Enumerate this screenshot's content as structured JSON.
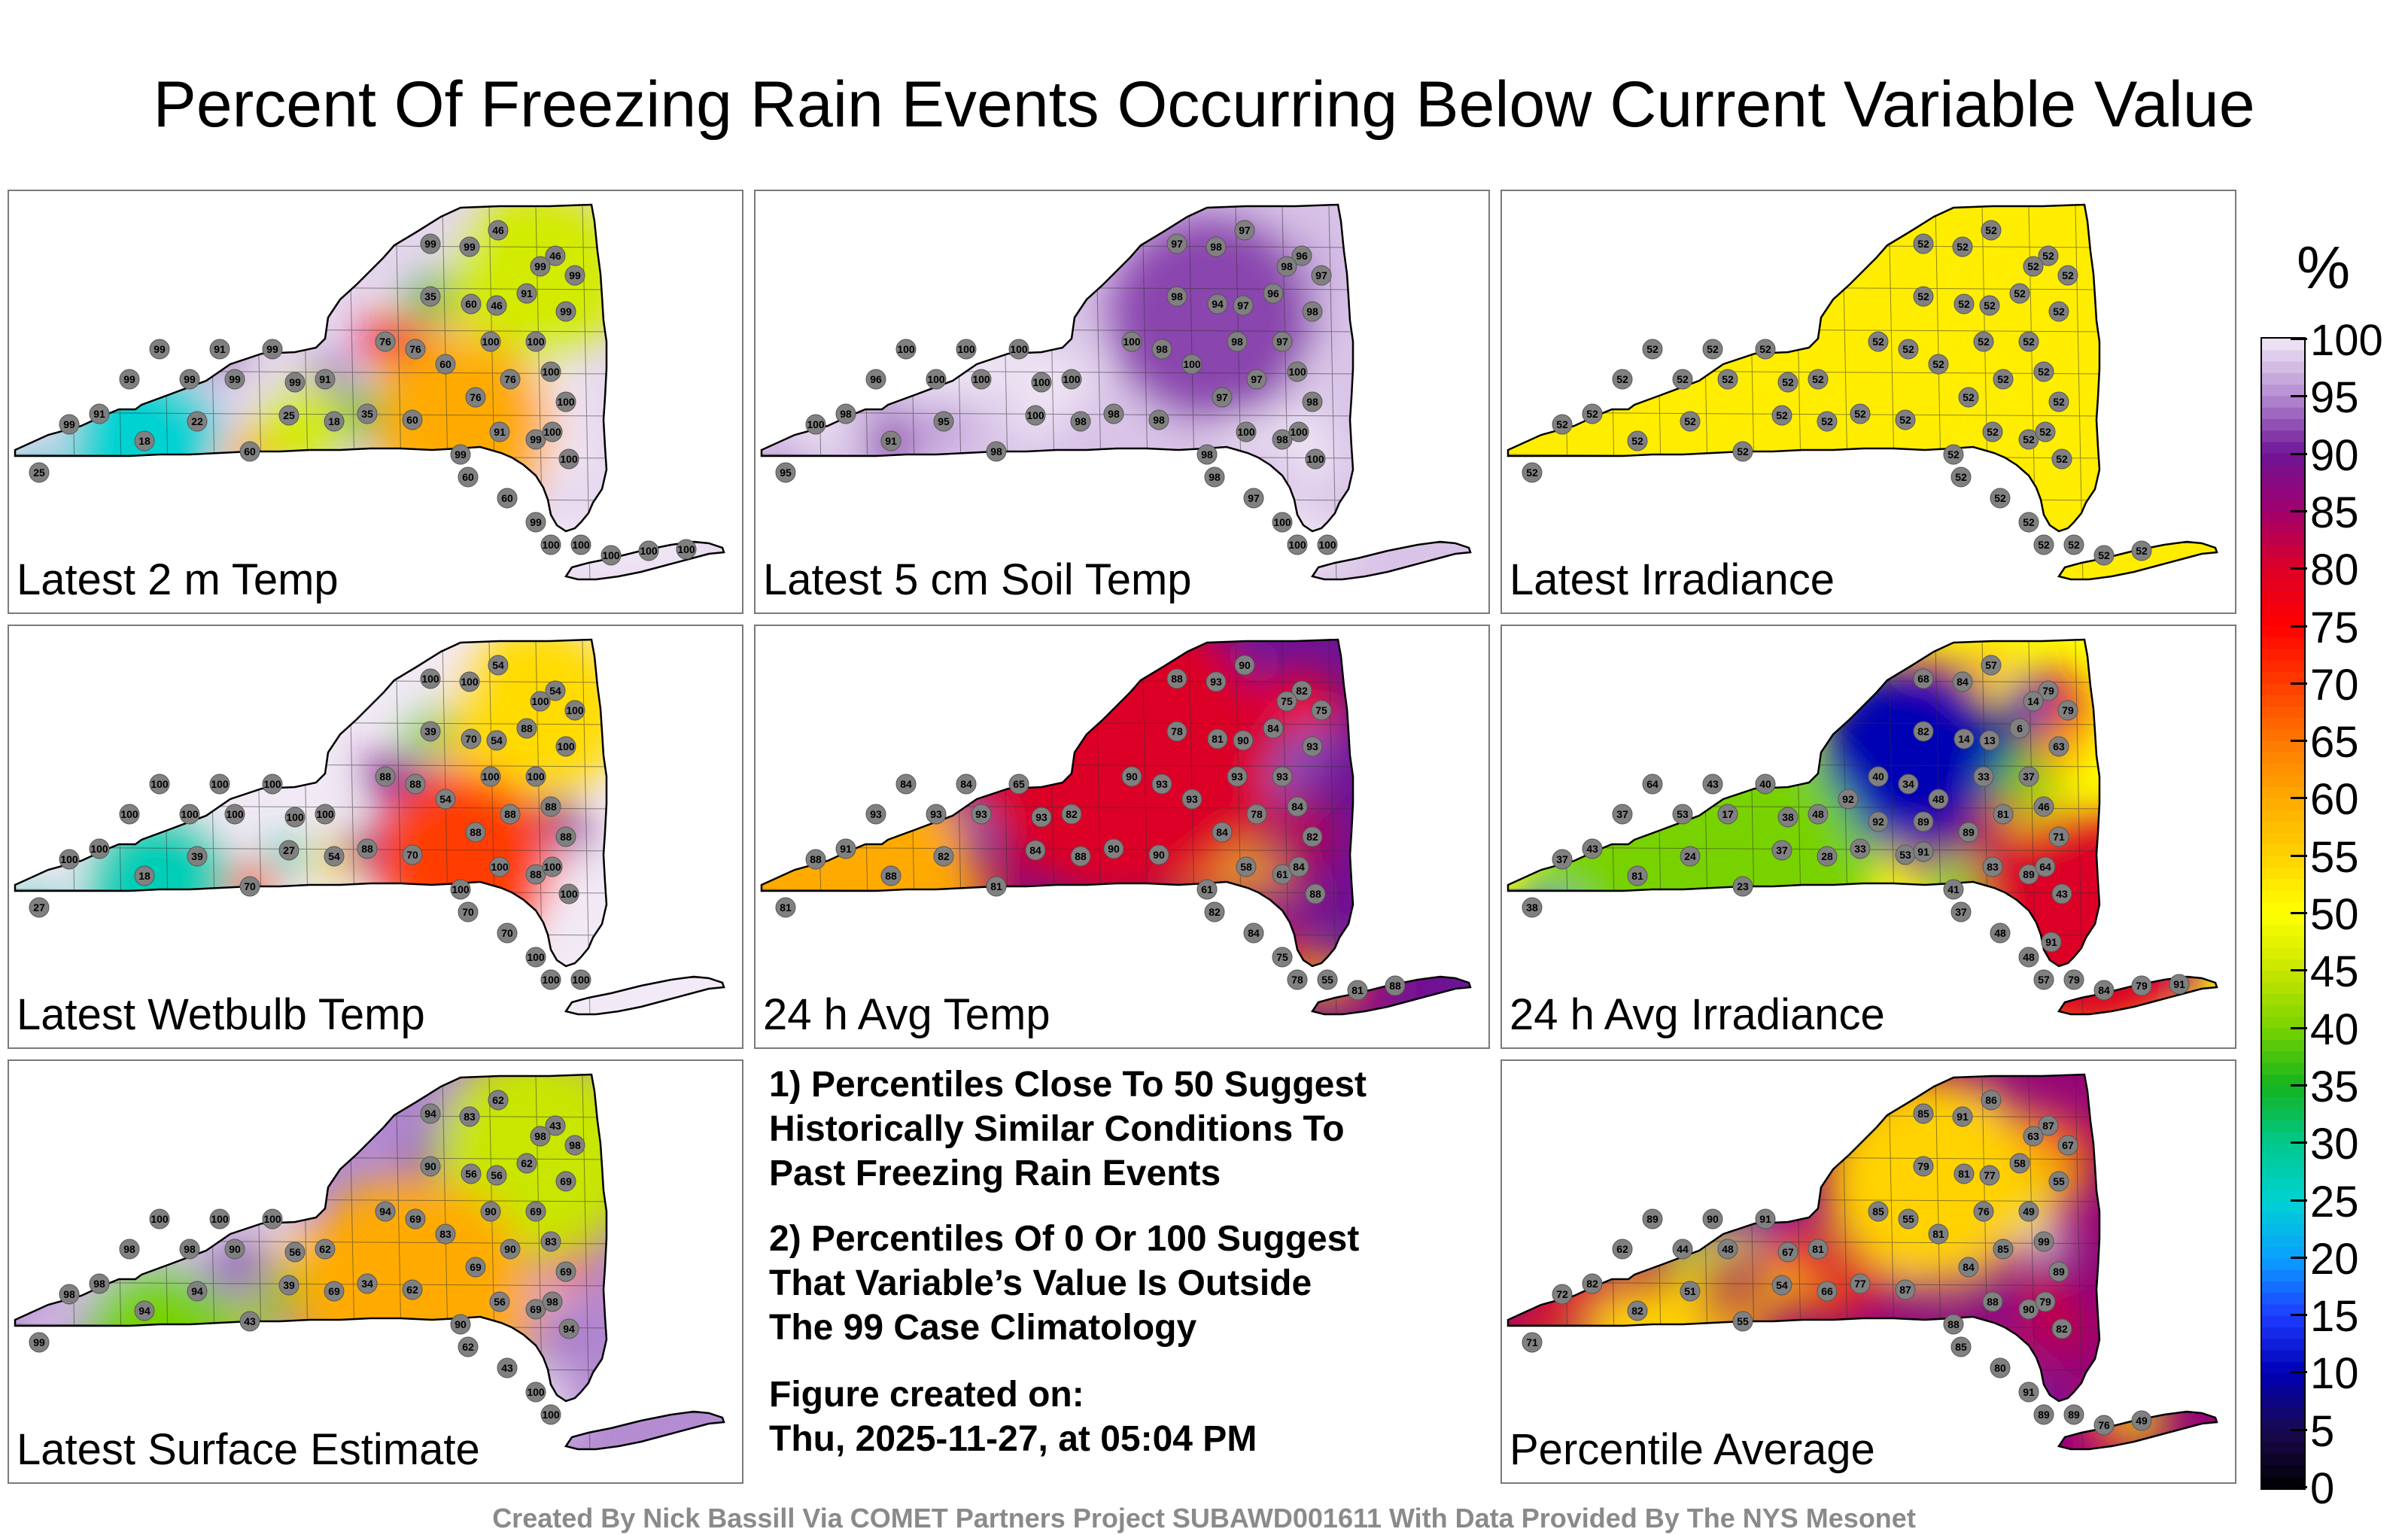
{
  "title": "Percent Of Freezing Rain Events Occurring Below Current Variable Value",
  "panels": [
    {
      "label": "Latest 2 m Temp",
      "stations": [
        99,
        99,
        46,
        46,
        35,
        60,
        46,
        91,
        99,
        99,
        25,
        18,
        22,
        60,
        25,
        18,
        35,
        60,
        99,
        91,
        99,
        76,
        76,
        100,
        100,
        91,
        60,
        60,
        100,
        100,
        76,
        76,
        60,
        100,
        100,
        99,
        99,
        99,
        99,
        99,
        91,
        99,
        99,
        91,
        99,
        99,
        100,
        100,
        100,
        100,
        100
      ],
      "blobs": [
        {
          "v": 46,
          "fx": 0.72,
          "fy": 0.2,
          "r": 0.12
        },
        {
          "v": 25,
          "fx": 0.18,
          "fy": 0.58,
          "r": 0.1
        },
        {
          "v": 60,
          "fx": 0.62,
          "fy": 0.55,
          "r": 0.12
        },
        {
          "v": 46,
          "fx": 0.4,
          "fy": 0.55,
          "r": 0.06
        }
      ],
      "base": 99
    },
    {
      "label": "Latest 5 cm Soil Temp",
      "stations": [
        97,
        98,
        97,
        96,
        98,
        94,
        97,
        96,
        98,
        97,
        95,
        91,
        95,
        98,
        100,
        98,
        98,
        98,
        98,
        100,
        98,
        97,
        97,
        100,
        98,
        100,
        98,
        97,
        100,
        100,
        100,
        98,
        100,
        98,
        97,
        98,
        100,
        100,
        100,
        96,
        98,
        100,
        100,
        100,
        100,
        100,
        100,
        100
      ],
      "blobs": [
        {
          "v": 92,
          "fx": 0.62,
          "fy": 0.3,
          "r": 0.14
        }
      ],
      "base": 98
    },
    {
      "label": "Latest Irradiance",
      "stations": [
        52,
        52,
        52,
        52,
        52,
        52,
        52,
        52,
        52,
        52,
        52,
        52,
        52,
        52,
        52,
        52,
        52,
        52,
        52,
        52,
        52,
        52,
        52,
        52,
        52,
        52,
        52,
        52,
        52,
        52,
        52,
        52,
        52,
        52,
        52,
        52,
        52,
        52,
        52,
        52,
        52,
        52,
        52,
        52,
        52,
        52,
        52,
        52,
        52,
        52
      ],
      "blobs": [],
      "base": 52
    },
    {
      "label": "Latest Wetbulb Temp",
      "stations": [
        100,
        100,
        54,
        54,
        39,
        70,
        54,
        88,
        100,
        100,
        27,
        18,
        39,
        70,
        27,
        54,
        88,
        70,
        100,
        100,
        88,
        88,
        88,
        88,
        88,
        100,
        70,
        70,
        100,
        100,
        88,
        88,
        54,
        100,
        100,
        100,
        100,
        100,
        100,
        100,
        100,
        100,
        100,
        100,
        100,
        100,
        100,
        100
      ],
      "blobs": [
        {
          "v": 54,
          "fx": 0.72,
          "fy": 0.2,
          "r": 0.12
        },
        {
          "v": 27,
          "fx": 0.2,
          "fy": 0.6,
          "r": 0.1
        },
        {
          "v": 70,
          "fx": 0.62,
          "fy": 0.55,
          "r": 0.12
        }
      ],
      "base": 100
    },
    {
      "label": "24 h Avg Temp",
      "stations": [
        88,
        93,
        90,
        82,
        78,
        81,
        90,
        84,
        75,
        75,
        81,
        88,
        82,
        81,
        84,
        88,
        90,
        90,
        61,
        58,
        61,
        84,
        78,
        84,
        82,
        82,
        82,
        84,
        84,
        88,
        90,
        93,
        93,
        93,
        93,
        93,
        93,
        93,
        93,
        93,
        91,
        88,
        84,
        84,
        65,
        75,
        78,
        55,
        81,
        88
      ],
      "blobs": [
        {
          "v": 60,
          "fx": 0.12,
          "fy": 0.62,
          "r": 0.18
        },
        {
          "v": 80,
          "fx": 0.5,
          "fy": 0.3,
          "r": 0.2
        }
      ],
      "base": 90
    },
    {
      "label": "24 h Avg Irradiance",
      "stations": [
        68,
        84,
        57,
        79,
        82,
        14,
        13,
        6,
        14,
        79,
        38,
        81,
        24,
        23,
        37,
        28,
        33,
        53,
        41,
        83,
        89,
        89,
        81,
        46,
        71,
        48,
        37,
        48,
        64,
        43,
        40,
        34,
        48,
        33,
        37,
        63,
        17,
        38,
        53,
        37,
        43,
        37,
        64,
        43,
        40,
        48,
        57,
        79,
        84,
        79,
        91,
        91,
        91,
        92,
        92,
        89
      ],
      "blobs": [
        {
          "v": 10,
          "fx": 0.55,
          "fy": 0.3,
          "r": 0.12
        },
        {
          "v": 15,
          "fx": 0.06,
          "fy": 0.72,
          "r": 0.05
        },
        {
          "v": 40,
          "fx": 0.3,
          "fy": 0.6,
          "r": 0.2
        },
        {
          "v": 80,
          "fx": 0.8,
          "fy": 0.7,
          "r": 0.15
        }
      ],
      "base": 50
    },
    {
      "label": "Latest Surface Estimate",
      "stations": [
        94,
        83,
        62,
        43,
        90,
        56,
        56,
        62,
        98,
        98,
        99,
        94,
        94,
        43,
        39,
        69,
        34,
        62,
        90,
        56,
        69,
        69,
        90,
        83,
        69,
        62,
        62,
        43,
        98,
        94,
        94,
        69,
        83,
        90,
        69,
        69,
        90,
        56,
        98,
        98,
        98,
        98,
        100,
        100,
        100,
        100,
        100
      ],
      "blobs": [
        {
          "v": 45,
          "fx": 0.72,
          "fy": 0.22,
          "r": 0.14
        },
        {
          "v": 40,
          "fx": 0.2,
          "fy": 0.65,
          "r": 0.1
        },
        {
          "v": 60,
          "fx": 0.55,
          "fy": 0.55,
          "r": 0.16
        }
      ],
      "base": 95
    },
    {
      "label": "Percentile Average",
      "stations": [
        85,
        91,
        86,
        87,
        79,
        81,
        77,
        58,
        63,
        67,
        71,
        82,
        51,
        55,
        54,
        66,
        77,
        87,
        88,
        88,
        90,
        84,
        85,
        99,
        89,
        81,
        85,
        80,
        79,
        82,
        85,
        55,
        81,
        76,
        49,
        55,
        48,
        67,
        44,
        62,
        82,
        72,
        89,
        90,
        91,
        91,
        89,
        89,
        76,
        49
      ],
      "blobs": [
        {
          "v": 55,
          "fx": 0.58,
          "fy": 0.28,
          "r": 0.14
        },
        {
          "v": 55,
          "fx": 0.2,
          "fy": 0.7,
          "r": 0.1
        }
      ],
      "base": 86
    }
  ],
  "notes": {
    "note1_line1": "1) Percentiles Close To 50 Suggest",
    "note1_line2": "Historically Similar Conditions To",
    "note1_line3": "Past Freezing Rain Events",
    "note2_line1": "2) Percentiles Of 0 Or 100 Suggest",
    "note2_line2": "That Variable’s Value Is Outside",
    "note2_line3": "The 99 Case Climatology",
    "created_label": "Figure created on:",
    "created_value": "Thu, 2025-11-27, at 05:04 PM"
  },
  "colorbar": {
    "unit": "%",
    "ticks": [
      "100",
      "95",
      "90",
      "85",
      "80",
      "75",
      "70",
      "65",
      "60",
      "55",
      "50",
      "45",
      "40",
      "35",
      "30",
      "25",
      "20",
      "15",
      "10",
      "5",
      "0"
    ]
  },
  "footer": "Created By Nick Bassill Via COMET Partners Project SUBAWD001611 With Data Provided By The NYS Mesonet"
}
